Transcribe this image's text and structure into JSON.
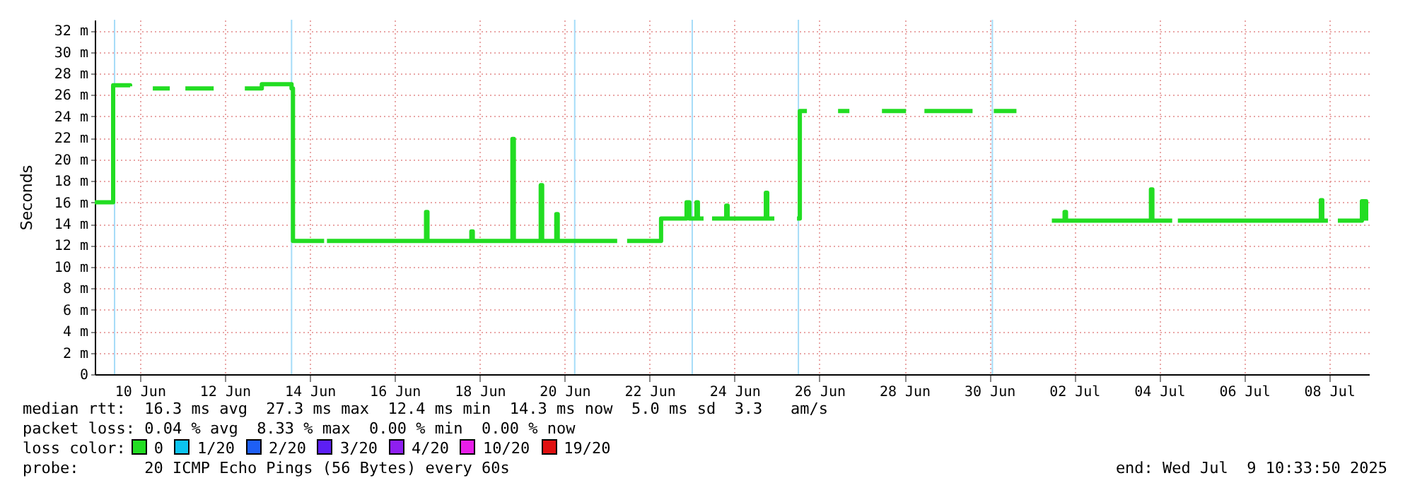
{
  "chart_data": {
    "type": "line",
    "ylabel": "Seconds",
    "xlim": [
      "2025-06-09T10:30",
      "2025-07-09T10:30"
    ],
    "xticks": [
      {
        "value": "2025-06-10T12:00",
        "label": "10 Jun"
      },
      {
        "value": "2025-06-12T12:00",
        "label": "12 Jun"
      },
      {
        "value": "2025-06-14T12:00",
        "label": "14 Jun"
      },
      {
        "value": "2025-06-16T12:00",
        "label": "16 Jun"
      },
      {
        "value": "2025-06-18T12:00",
        "label": "18 Jun"
      },
      {
        "value": "2025-06-20T12:00",
        "label": "20 Jun"
      },
      {
        "value": "2025-06-22T12:00",
        "label": "22 Jun"
      },
      {
        "value": "2025-06-24T12:00",
        "label": "24 Jun"
      },
      {
        "value": "2025-06-26T12:00",
        "label": "26 Jun"
      },
      {
        "value": "2025-06-28T12:00",
        "label": "28 Jun"
      },
      {
        "value": "2025-06-30T12:00",
        "label": "30 Jun"
      },
      {
        "value": "2025-07-02T12:00",
        "label": "02 Jul"
      },
      {
        "value": "2025-07-04T12:00",
        "label": "04 Jul"
      },
      {
        "value": "2025-07-06T12:00",
        "label": "06 Jul"
      },
      {
        "value": "2025-07-08T12:00",
        "label": "08 Jul"
      }
    ],
    "ylim": [
      0,
      33
    ],
    "yticks": [
      0,
      {
        "value": 2,
        "label": "2 m"
      },
      {
        "value": 4,
        "label": "4 m"
      },
      {
        "value": 6,
        "label": "6 m"
      },
      {
        "value": 8,
        "label": "8 m"
      },
      {
        "value": 10,
        "label": "10 m"
      },
      {
        "value": 12,
        "label": "12 m"
      },
      {
        "value": 14,
        "label": "14 m"
      },
      {
        "value": 16,
        "label": "16 m"
      },
      {
        "value": 18,
        "label": "18 m"
      },
      {
        "value": 20,
        "label": "20 m"
      },
      {
        "value": 22,
        "label": "22 m"
      },
      {
        "value": 24,
        "label": "24 m"
      },
      {
        "value": 26,
        "label": "26 m"
      },
      {
        "value": 28,
        "label": "28 m"
      },
      {
        "value": 30,
        "label": "30 m"
      },
      {
        "value": 32,
        "label": "32 m"
      }
    ],
    "grid": true,
    "line_style": "solid",
    "x": [
      "2025-06-09T10:30",
      "2025-06-09T17:42",
      "2025-06-09T20:54",
      "2025-06-10T06:30",
      "2025-06-10T12:00",
      "2025-06-10T19:18",
      "2025-06-11T04:54",
      "2025-06-11T09:00",
      "2025-06-11T13:42",
      "2025-06-12T05:42",
      "2025-06-12T12:00",
      "2025-06-12T23:18",
      "2025-06-13T08:54",
      "2025-06-14T01:42",
      "2025-06-14T02:30",
      "2025-06-14T20:06",
      "2025-06-14T21:00",
      "2025-06-14T21:42",
      "2025-06-17T04:54",
      "2025-06-17T05:42",
      "2025-06-17T06:30",
      "2025-06-18T07:18",
      "2025-06-18T08:06",
      "2025-06-19T05:42",
      "2025-06-19T06:30",
      "2025-06-19T07:18",
      "2025-06-19T22:30",
      "2025-06-19T23:18",
      "2025-06-20T07:18",
      "2025-06-20T08:06",
      "2025-06-21T17:42",
      "2025-06-21T20:00",
      "2025-06-21T23:18",
      "2025-06-22T17:42",
      "2025-06-22T18:30",
      "2025-06-23T08:54",
      "2025-06-23T10:30",
      "2025-06-23T14:30",
      "2025-06-23T15:18",
      "2025-06-23T18:30",
      "2025-06-23T21:00",
      "2025-06-23T23:18",
      "2025-06-24T07:18",
      "2025-06-24T08:06",
      "2025-06-25T05:42",
      "2025-06-25T06:30",
      "2025-06-25T10:30",
      "2025-06-25T16:00",
      "2025-06-25T23:18",
      "2025-06-26T00:54",
      "2025-06-26T04:54",
      "2025-06-26T14:00",
      "2025-06-26T22:30",
      "2025-06-27T04:54",
      "2025-06-27T13:00",
      "2025-06-27T23:18",
      "2025-06-28T12:54",
      "2025-06-28T18:00",
      "2025-06-28T23:18",
      "2025-06-30T00:54",
      "2025-06-30T02:30",
      "2025-06-30T08:00",
      "2025-06-30T14:30",
      "2025-07-01T03:18",
      "2025-07-01T13:00",
      "2025-07-01T23:18",
      "2025-07-02T05:42",
      "2025-07-02T06:30",
      "2025-07-02T07:18",
      "2025-07-04T06:30",
      "2025-07-04T07:18",
      "2025-07-04T08:06",
      "2025-07-04T19:18",
      "2025-07-04T21:00",
      "2025-07-04T22:30",
      "2025-07-08T06:30",
      "2025-07-08T07:18",
      "2025-07-08T08:06",
      "2025-07-08T11:18",
      "2025-07-08T14:00",
      "2025-07-08T16:54",
      "2025-07-09T05:42",
      "2025-07-09T06:30",
      "2025-07-09T08:54"
    ],
    "series": [
      {
        "color": "#22dd22",
        "values": [
          16.0,
          16.0,
          26.9,
          26.8,
          null,
          26.6,
          26.6,
          null,
          26.6,
          26.6,
          null,
          26.6,
          27.0,
          26.6,
          12.4,
          12.4,
          null,
          12.4,
          12.4,
          15.1,
          12.4,
          13.3,
          12.4,
          12.4,
          21.9,
          12.4,
          17.6,
          12.4,
          14.9,
          12.4,
          12.4,
          null,
          12.4,
          12.4,
          14.5,
          16.0,
          14.5,
          16.0,
          14.5,
          14.5,
          null,
          14.5,
          15.7,
          14.5,
          16.9,
          14.5,
          14.5,
          null,
          14.5,
          24.5,
          24.5,
          null,
          24.5,
          24.5,
          null,
          24.5,
          24.5,
          null,
          24.5,
          24.5,
          24.5,
          null,
          24.5,
          24.5,
          null,
          14.3,
          14.3,
          15.1,
          14.3,
          14.3,
          17.2,
          14.3,
          14.3,
          null,
          14.3,
          14.3,
          16.2,
          14.3,
          14.3,
          null,
          14.3,
          14.3,
          16.1,
          14.3
        ]
      }
    ],
    "ref_lines": [
      {
        "axis": "x",
        "value": "2025-06-09T21:42",
        "color": "#a6dcf8"
      },
      {
        "axis": "x",
        "value": "2025-06-14T01:42",
        "color": "#a6dcf8"
      },
      {
        "axis": "x",
        "value": "2025-06-20T17:42",
        "color": "#a6dcf8"
      },
      {
        "axis": "x",
        "value": "2025-06-23T12:06",
        "color": "#a6dcf8"
      },
      {
        "axis": "x",
        "value": "2025-06-26T00:06",
        "color": "#a6dcf8"
      },
      {
        "axis": "x",
        "value": "2025-06-30T13:42",
        "color": "#a6dcf8"
      }
    ],
    "annotations": [
      "median rtt:  16.3 ms avg  27.3 ms max  12.4 ms min  14.3 ms now  5.0 ms sd  3.3   am/s",
      "packet loss: 0.04 % avg  8.33 % max  0.00 % min  0.00 % now",
      "loss color:",
      "0",
      "1/20",
      "2/20",
      "3/20",
      "4/20",
      "10/20",
      "19/20",
      "probe:       20 ICMP Echo Pings (56 Bytes) every 60s",
      "end: Wed Jul  9 10:33:50 2025"
    ]
  }
}
